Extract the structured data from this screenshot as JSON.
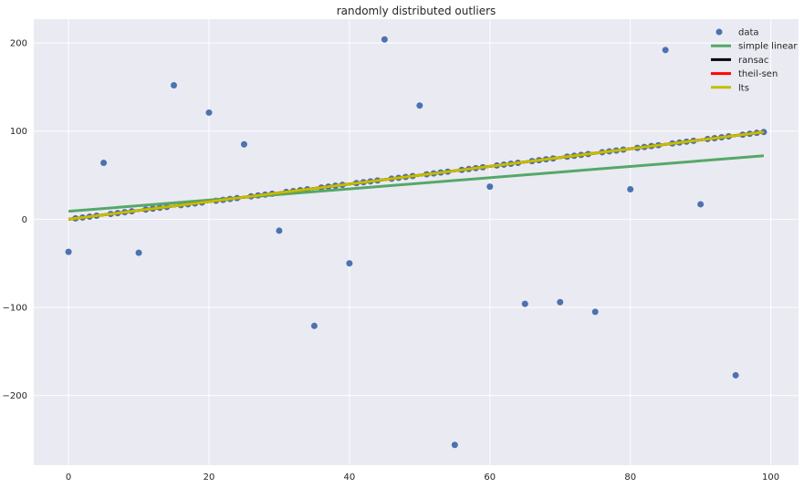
{
  "chart_data": {
    "type": "scatter",
    "title": "randomly distributed outliers",
    "xlabel": "",
    "ylabel": "",
    "xlim": [
      -4.95,
      103.95
    ],
    "ylim": [
      -279,
      227
    ],
    "xticks": [
      0,
      20,
      40,
      60,
      80,
      100
    ],
    "yticks": [
      -200,
      -100,
      0,
      100,
      200
    ],
    "grid": true,
    "legend_position": "top-right",
    "scatter": {
      "name": "data",
      "color": "#4c72b0",
      "outliers": [
        {
          "x": 0,
          "y": -37
        },
        {
          "x": 5,
          "y": 64
        },
        {
          "x": 10,
          "y": -38
        },
        {
          "x": 15,
          "y": 152
        },
        {
          "x": 20,
          "y": 121
        },
        {
          "x": 25,
          "y": 85
        },
        {
          "x": 30,
          "y": -13
        },
        {
          "x": 35,
          "y": -121
        },
        {
          "x": 40,
          "y": -50
        },
        {
          "x": 45,
          "y": 204
        },
        {
          "x": 50,
          "y": 129
        },
        {
          "x": 55,
          "y": -256
        },
        {
          "x": 60,
          "y": 37
        },
        {
          "x": 65,
          "y": -96
        },
        {
          "x": 70,
          "y": -94
        },
        {
          "x": 75,
          "y": -105
        },
        {
          "x": 80,
          "y": 34
        },
        {
          "x": 85,
          "y": 192
        },
        {
          "x": 90,
          "y": 17
        },
        {
          "x": 95,
          "y": -177
        }
      ],
      "inlier_rule": "y = x for every integer x in 0..99 not a multiple of 5",
      "inlier_x_range": [
        1,
        99
      ],
      "inlier_step": 1,
      "inlier_slope": 1,
      "inlier_intercept": 0
    },
    "lines": [
      {
        "name": "simple linear",
        "color": "#55a868",
        "x": [
          0,
          99
        ],
        "y": [
          9,
          72
        ]
      },
      {
        "name": "ransac",
        "color": "#000000",
        "x": [
          0,
          99
        ],
        "y": [
          0,
          99
        ]
      },
      {
        "name": "theil-sen",
        "color": "#ff0000",
        "x": [
          0,
          99
        ],
        "y": [
          0,
          99
        ]
      },
      {
        "name": "lts",
        "color": "#bfbf00",
        "x": [
          0,
          99
        ],
        "y": [
          0,
          99
        ]
      }
    ],
    "legend": [
      "data",
      "simple linear",
      "ransac",
      "theil-sen",
      "lts"
    ]
  }
}
